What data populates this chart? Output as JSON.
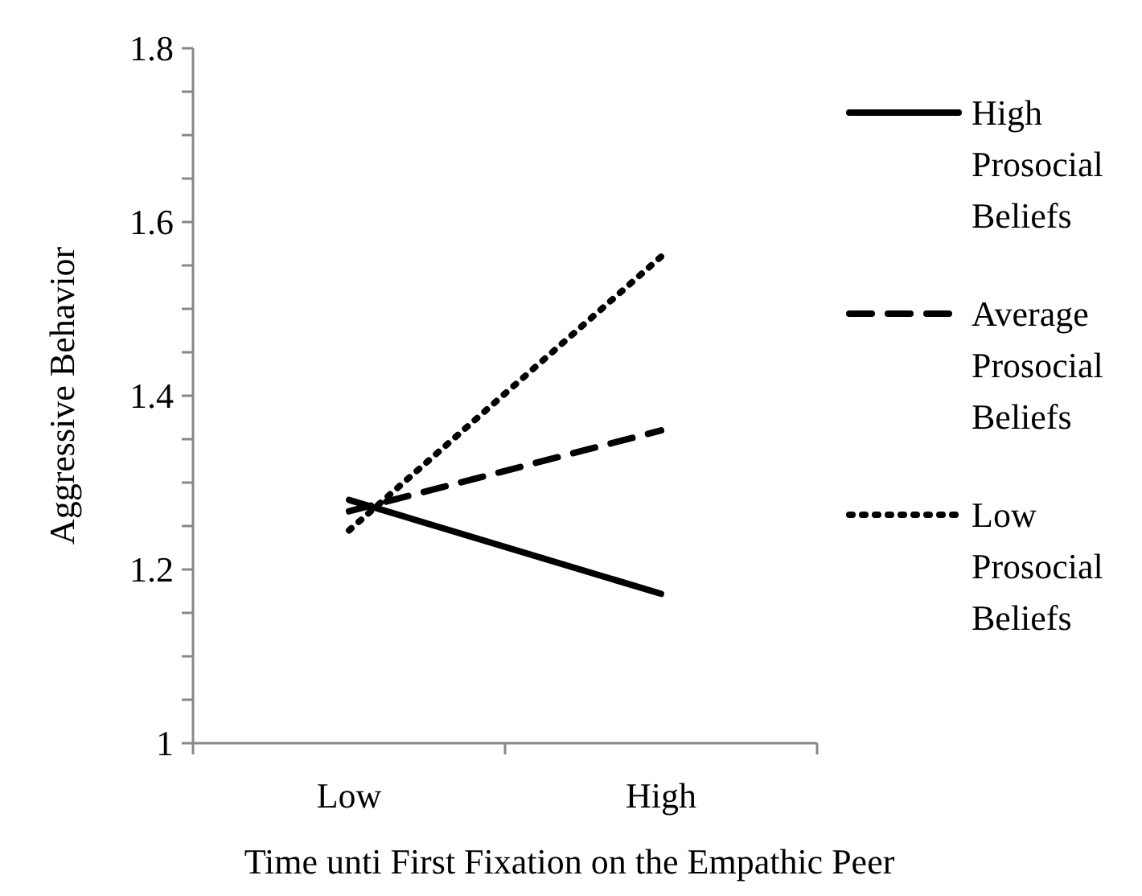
{
  "chart_data": {
    "type": "line",
    "xlabel": "Time unti First Fixation on the Empathic Peer",
    "ylabel": "Aggressive Behavior",
    "categories": [
      "Low",
      "High"
    ],
    "series": [
      {
        "name": "High Prosocial Beliefs",
        "color": "#000000",
        "line_style": "solid",
        "values": [
          1.28,
          1.172
        ]
      },
      {
        "name": "Average Prosocial Beliefs",
        "color": "#000000",
        "line_style": "dashed",
        "values": [
          1.267,
          1.36
        ]
      },
      {
        "name": "Low Prosocial Beliefs",
        "color": "#000000",
        "line_style": "dotted",
        "values": [
          1.245,
          1.56
        ]
      }
    ],
    "ylim": [
      1,
      1.8
    ],
    "yticks": [
      1,
      {
        "value": 1.05,
        "label": null
      },
      {
        "value": 1.1,
        "label": null
      },
      {
        "value": 1.15,
        "label": null
      },
      1.2,
      {
        "value": 1.25,
        "label": null
      },
      {
        "value": 1.3,
        "label": null
      },
      {
        "value": 1.35,
        "label": null
      },
      1.4,
      {
        "value": 1.45,
        "label": null
      },
      {
        "value": 1.5,
        "label": null
      },
      {
        "value": 1.55,
        "label": null
      },
      1.6,
      {
        "value": 1.65,
        "label": null
      },
      {
        "value": 1.7,
        "label": null
      },
      {
        "value": 1.75,
        "label": null
      },
      1.8
    ],
    "grid": false,
    "legend": "right",
    "marker": "none"
  }
}
